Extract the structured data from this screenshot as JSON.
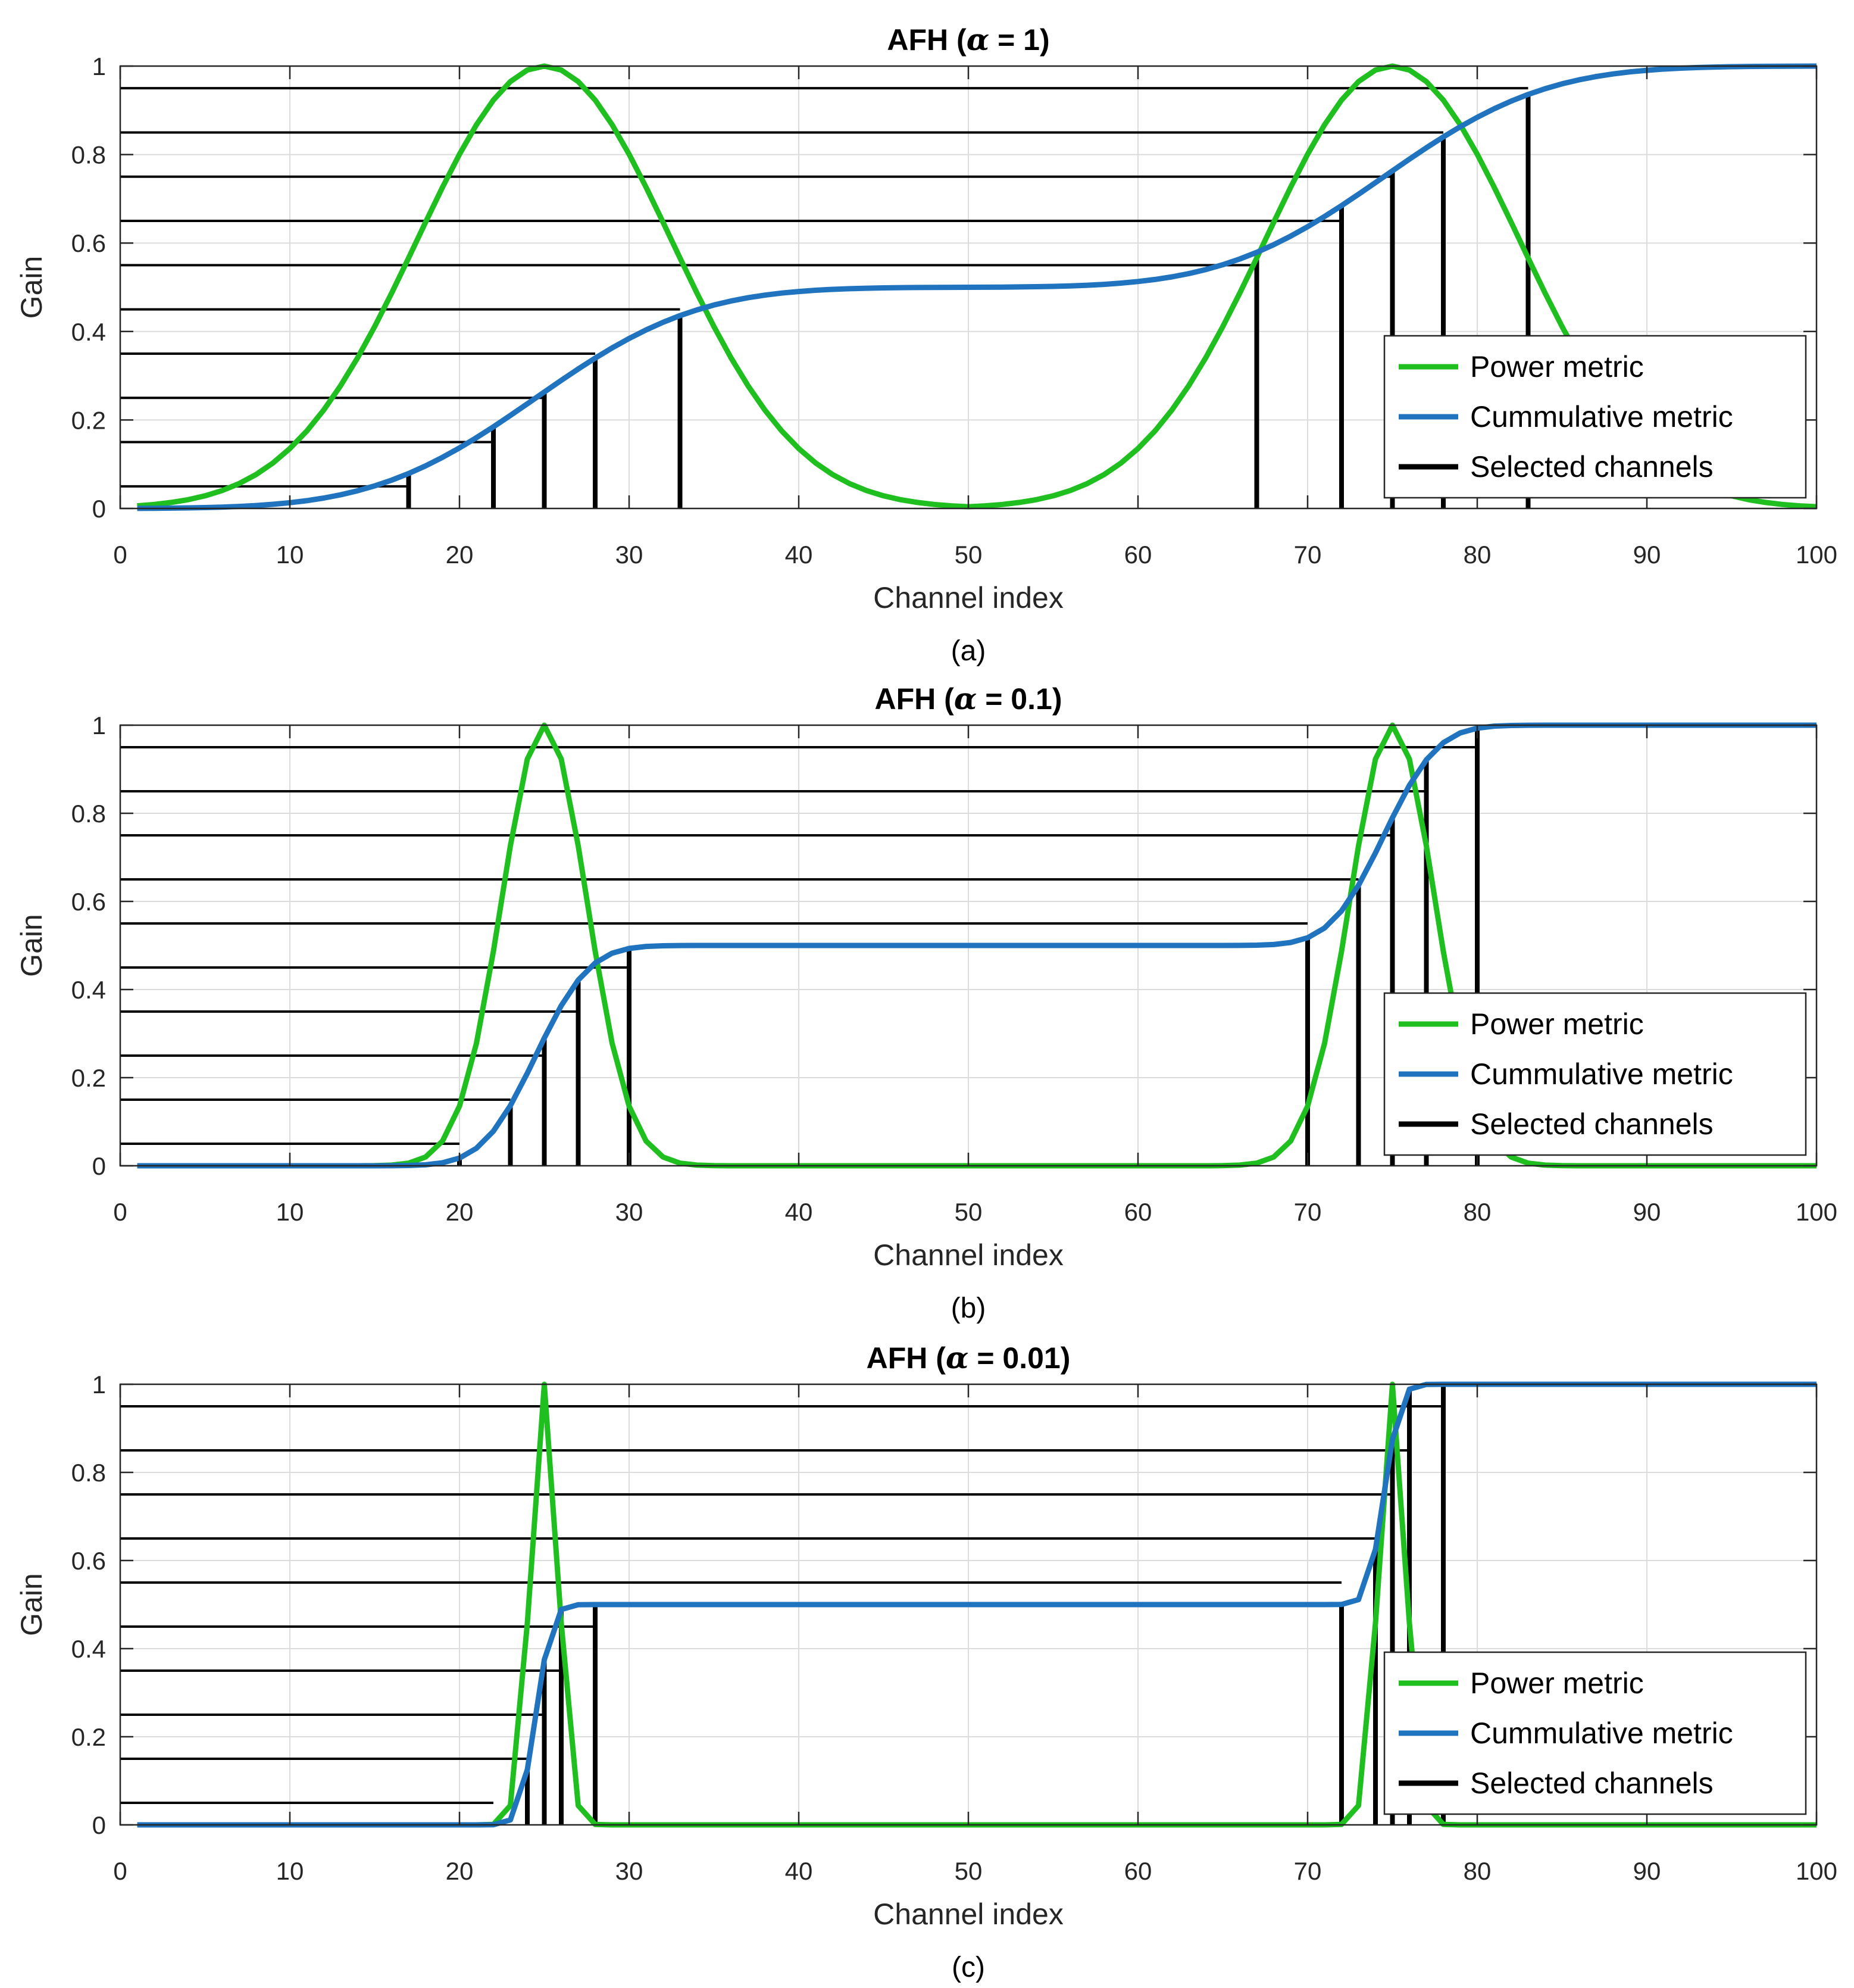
{
  "chart_data": [
    {
      "type": "line",
      "title_prefix": "AFH (",
      "title_alpha": "α",
      "title_suffix": " = 1)",
      "xlabel": "Channel index",
      "ylabel": "Gain",
      "caption": "(a)",
      "xlim": [
        0,
        100
      ],
      "ylim": [
        0,
        1
      ],
      "xticks": [
        0,
        10,
        20,
        30,
        40,
        50,
        60,
        70,
        80,
        90,
        100
      ],
      "yticks": [
        0,
        0.2,
        0.4,
        0.6,
        0.8,
        1
      ],
      "ytick_labels": [
        "0",
        "0.2",
        "0.4",
        "0.6",
        "0.8",
        "1"
      ],
      "grid": true,
      "legend_position": "bottom-right",
      "alpha": 1,
      "sigma": 7.5,
      "peaks": [
        25,
        75
      ],
      "channel_range": [
        1,
        100
      ],
      "thresholds": [
        0.05,
        0.15,
        0.25,
        0.35,
        0.45,
        0.55,
        0.65,
        0.75,
        0.85,
        0.95
      ],
      "selected_channels": [
        17,
        22,
        25,
        28,
        33,
        67,
        72,
        75,
        78,
        83
      ],
      "series": [
        {
          "name": "Power metric",
          "color": "#1fbf1f"
        },
        {
          "name": "Cummulative metric",
          "color": "#1f73bf"
        },
        {
          "name": "Selected channels",
          "color": "#000000"
        }
      ]
    },
    {
      "type": "line",
      "title_prefix": "AFH (",
      "title_alpha": "α",
      "title_suffix": " = 0.1)",
      "xlabel": "Channel index",
      "ylabel": "Gain",
      "caption": "(b)",
      "xlim": [
        0,
        100
      ],
      "ylim": [
        0,
        1
      ],
      "xticks": [
        0,
        10,
        20,
        30,
        40,
        50,
        60,
        70,
        80,
        90,
        100
      ],
      "yticks": [
        0,
        0.2,
        0.4,
        0.6,
        0.8,
        1
      ],
      "ytick_labels": [
        "0",
        "0.2",
        "0.4",
        "0.6",
        "0.8",
        "1"
      ],
      "grid": true,
      "legend_position": "bottom-right",
      "alpha": 0.1,
      "sigma": 2.5,
      "peaks": [
        25,
        75
      ],
      "channel_range": [
        1,
        100
      ],
      "thresholds": [
        0.05,
        0.15,
        0.25,
        0.35,
        0.45,
        0.55,
        0.65,
        0.75,
        0.85,
        0.95
      ],
      "selected_channels": [
        20,
        23,
        25,
        27,
        30,
        70,
        73,
        75,
        77,
        80
      ],
      "series": [
        {
          "name": "Power metric",
          "color": "#1fbf1f"
        },
        {
          "name": "Cummulative metric",
          "color": "#1f73bf"
        },
        {
          "name": "Selected channels",
          "color": "#000000"
        }
      ]
    },
    {
      "type": "line",
      "title_prefix": "AFH (",
      "title_alpha": "α",
      "title_suffix": " = 0.01)",
      "xlabel": "Channel index",
      "ylabel": "Gain",
      "caption": "(c)",
      "xlim": [
        0,
        100
      ],
      "ylim": [
        0,
        1
      ],
      "xticks": [
        0,
        10,
        20,
        30,
        40,
        50,
        60,
        70,
        80,
        90,
        100
      ],
      "yticks": [
        0,
        0.2,
        0.4,
        0.6,
        0.8,
        1
      ],
      "ytick_labels": [
        "0",
        "0.2",
        "0.4",
        "0.6",
        "0.8",
        "1"
      ],
      "grid": true,
      "legend_position": "bottom-right",
      "alpha": 0.01,
      "sigma": 0.8,
      "peaks": [
        25,
        75
      ],
      "channel_range": [
        1,
        100
      ],
      "thresholds": [
        0.05,
        0.15,
        0.25,
        0.35,
        0.45,
        0.55,
        0.65,
        0.75,
        0.85,
        0.95
      ],
      "selected_channels": [
        22,
        24,
        25,
        26,
        28,
        72,
        74,
        75,
        76,
        78
      ],
      "series": [
        {
          "name": "Power metric",
          "color": "#1fbf1f"
        },
        {
          "name": "Cummulative metric",
          "color": "#1f73bf"
        },
        {
          "name": "Selected channels",
          "color": "#000000"
        }
      ]
    }
  ]
}
